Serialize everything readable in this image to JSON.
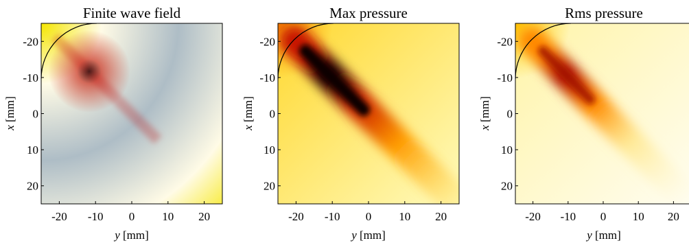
{
  "chart_data": [
    {
      "type": "heatmap",
      "title": "Finite wave field",
      "xlabel_var": "y",
      "xlabel_unit": "[mm]",
      "ylabel_var": "x",
      "ylabel_unit": "[mm]",
      "xlim": [
        -25,
        25
      ],
      "ylim": [
        -25,
        25
      ],
      "y_axis_reversed": true,
      "xticks": [
        -20,
        -10,
        0,
        10,
        20
      ],
      "yticks": [
        -20,
        -10,
        0,
        10,
        20
      ],
      "colormap": "blue-white-yellow-red (diverging)",
      "field": "instantaneous pressure wave field, concentric fringes centred near (y=-25, x=-25), focal region near (y=-12, x=-12)",
      "source_arc_radius_mm": 14
    },
    {
      "type": "heatmap",
      "title": "Max pressure",
      "xlabel_var": "y",
      "xlabel_unit": "[mm]",
      "ylabel_var": "x",
      "ylabel_unit": "[mm]",
      "xlim": [
        -25,
        25
      ],
      "ylim": [
        -25,
        25
      ],
      "y_axis_reversed": true,
      "xticks": [
        -20,
        -10,
        0,
        10,
        20
      ],
      "yticks": [
        -20,
        -10,
        0,
        10,
        20
      ],
      "colormap": "hot (black-red-yellow-white)",
      "field": "peak pressure, beam along diagonal with maximum near (y=-12, x=-12)",
      "source_arc_radius_mm": 14
    },
    {
      "type": "heatmap",
      "title": "Rms pressure",
      "xlabel_var": "y",
      "xlabel_unit": "[mm]",
      "ylabel_var": "x",
      "ylabel_unit": "[mm]",
      "xlim": [
        -25,
        25
      ],
      "ylim": [
        -25,
        25
      ],
      "y_axis_reversed": true,
      "xticks": [
        -20,
        -10,
        0,
        10,
        20
      ],
      "yticks": [
        -20,
        -10,
        0,
        10,
        20
      ],
      "colormap": "hot (black-red-yellow-white)",
      "field": "rms pressure, beam along diagonal with maximum near (y=-12, x=-12), weaker than max pressure",
      "source_arc_radius_mm": 14
    }
  ]
}
